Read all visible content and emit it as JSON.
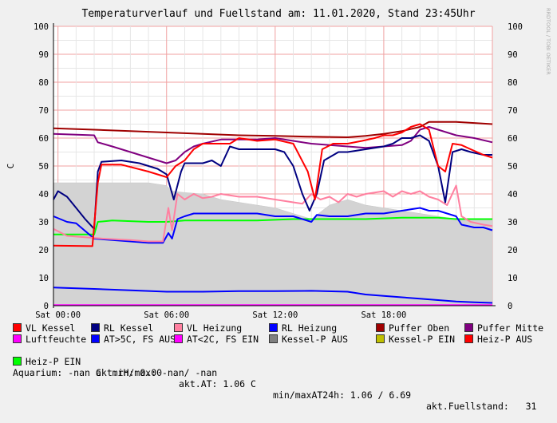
{
  "chart_data": {
    "type": "line",
    "title": "Temperaturverlauf und Fuellstand am: 11.01.2020, Stand 23:45Uhr",
    "ylabel": "C",
    "watermark": "RRDTOOL / TOBI OETIKER",
    "ylim": [
      0,
      100
    ],
    "yticks": [
      0,
      10,
      20,
      30,
      40,
      50,
      60,
      70,
      80,
      90,
      100
    ],
    "xlim_hours": [
      -0.25,
      24
    ],
    "xticks": [
      {
        "h": 0,
        "label": "Sat 00:00"
      },
      {
        "h": 6,
        "label": "Sat 06:00"
      },
      {
        "h": 12,
        "label": "Sat 12:00"
      },
      {
        "h": 18,
        "label": "Sat 18:00"
      }
    ],
    "grid": true,
    "series": [
      {
        "name": "VL Kessel",
        "color": "#ff0000",
        "points": [
          [
            -0.25,
            21.5
          ],
          [
            1.9,
            21.3
          ],
          [
            2.2,
            44
          ],
          [
            2.4,
            50.5
          ],
          [
            3.5,
            50.5
          ],
          [
            5,
            48
          ],
          [
            6,
            46
          ],
          [
            6.5,
            50
          ],
          [
            7,
            52
          ],
          [
            7.5,
            56
          ],
          [
            8,
            58
          ],
          [
            8.8,
            58
          ],
          [
            9.5,
            58
          ],
          [
            10,
            60
          ],
          [
            10.5,
            59.5
          ],
          [
            11,
            59
          ],
          [
            12,
            59.5
          ],
          [
            13,
            58
          ],
          [
            13.8,
            48
          ],
          [
            14.2,
            38
          ],
          [
            14.6,
            56
          ],
          [
            15.2,
            58
          ],
          [
            16,
            58
          ],
          [
            16.8,
            59
          ],
          [
            17.5,
            60
          ],
          [
            18,
            61
          ],
          [
            18.5,
            61
          ],
          [
            19,
            62
          ],
          [
            19.5,
            64
          ],
          [
            20,
            65
          ],
          [
            20.5,
            63
          ],
          [
            21,
            50
          ],
          [
            21.4,
            48
          ],
          [
            21.8,
            58
          ],
          [
            22.3,
            57.5
          ],
          [
            22.8,
            56
          ],
          [
            23.5,
            54
          ],
          [
            24,
            53
          ]
        ]
      },
      {
        "name": "RL Kessel",
        "color": "#000080",
        "points": [
          [
            -0.25,
            38
          ],
          [
            0,
            41
          ],
          [
            0.5,
            39
          ],
          [
            1,
            35
          ],
          [
            1.5,
            31
          ],
          [
            2,
            27.5
          ],
          [
            2.2,
            48
          ],
          [
            2.4,
            51.5
          ],
          [
            3.5,
            52
          ],
          [
            4.5,
            51
          ],
          [
            5.5,
            49
          ],
          [
            6,
            47
          ],
          [
            6.4,
            38
          ],
          [
            6.8,
            48
          ],
          [
            7,
            51
          ],
          [
            8,
            51
          ],
          [
            8.5,
            52
          ],
          [
            9,
            50
          ],
          [
            9.5,
            57
          ],
          [
            10,
            56
          ],
          [
            10.5,
            56
          ],
          [
            11,
            56
          ],
          [
            12,
            56
          ],
          [
            12.5,
            55
          ],
          [
            13,
            50
          ],
          [
            13.5,
            40
          ],
          [
            13.9,
            34
          ],
          [
            14.3,
            40
          ],
          [
            14.7,
            52
          ],
          [
            15.5,
            55
          ],
          [
            16,
            55
          ],
          [
            17,
            56
          ],
          [
            18,
            57
          ],
          [
            18.5,
            58
          ],
          [
            19,
            60
          ],
          [
            19.5,
            60
          ],
          [
            20,
            61
          ],
          [
            20.5,
            59
          ],
          [
            21,
            50
          ],
          [
            21.4,
            37
          ],
          [
            21.8,
            55
          ],
          [
            22.3,
            56
          ],
          [
            22.8,
            55
          ],
          [
            23.5,
            54
          ],
          [
            24,
            54
          ]
        ]
      },
      {
        "name": "VL Heizung",
        "color": "#ff80a0",
        "points": [
          [
            -0.25,
            27.5
          ],
          [
            0.5,
            25
          ],
          [
            1.5,
            24.5
          ],
          [
            2.5,
            24
          ],
          [
            4,
            23.5
          ],
          [
            5,
            23
          ],
          [
            5.8,
            23
          ],
          [
            6.1,
            35
          ],
          [
            6.3,
            27
          ],
          [
            6.6,
            40
          ],
          [
            7,
            38
          ],
          [
            7.5,
            40
          ],
          [
            8,
            38.5
          ],
          [
            8.5,
            39
          ],
          [
            9,
            40
          ],
          [
            9.5,
            39.5
          ],
          [
            10,
            39
          ],
          [
            10.5,
            39
          ],
          [
            11,
            39
          ],
          [
            12,
            38
          ],
          [
            13,
            37
          ],
          [
            13.5,
            36.5
          ],
          [
            14,
            40
          ],
          [
            14.5,
            38
          ],
          [
            15,
            39
          ],
          [
            15.5,
            37
          ],
          [
            16,
            40
          ],
          [
            16.5,
            39
          ],
          [
            17,
            40
          ],
          [
            18,
            41
          ],
          [
            18.5,
            39
          ],
          [
            19,
            41
          ],
          [
            19.5,
            40
          ],
          [
            20,
            41
          ],
          [
            20.5,
            39
          ],
          [
            21,
            38
          ],
          [
            21.5,
            36
          ],
          [
            22,
            43
          ],
          [
            22.3,
            32
          ],
          [
            22.8,
            30
          ],
          [
            23.5,
            29
          ],
          [
            24,
            28.5
          ]
        ]
      },
      {
        "name": "RL Heizung",
        "color": "#0000ff",
        "points": [
          [
            -0.25,
            32
          ],
          [
            0.5,
            30
          ],
          [
            1,
            29.5
          ],
          [
            2,
            24
          ],
          [
            3,
            23.5
          ],
          [
            4,
            23
          ],
          [
            5,
            22.5
          ],
          [
            5.8,
            22.5
          ],
          [
            6.1,
            26
          ],
          [
            6.3,
            24
          ],
          [
            6.6,
            31
          ],
          [
            7,
            32
          ],
          [
            7.5,
            33
          ],
          [
            8,
            33
          ],
          [
            9,
            33
          ],
          [
            10,
            33
          ],
          [
            11,
            33
          ],
          [
            12,
            32
          ],
          [
            13,
            32
          ],
          [
            13.5,
            31
          ],
          [
            14,
            30
          ],
          [
            14.3,
            32.5
          ],
          [
            15,
            32
          ],
          [
            16,
            32
          ],
          [
            17,
            33
          ],
          [
            18,
            33
          ],
          [
            18.5,
            33.5
          ],
          [
            19,
            34
          ],
          [
            19.5,
            34.5
          ],
          [
            20,
            35
          ],
          [
            20.5,
            34
          ],
          [
            21,
            34
          ],
          [
            21.5,
            33
          ],
          [
            22,
            32
          ],
          [
            22.3,
            29
          ],
          [
            23,
            28
          ],
          [
            23.5,
            28
          ],
          [
            24,
            27
          ]
        ]
      },
      {
        "name": "Puffer Oben",
        "color": "#a00000",
        "points": [
          [
            -0.25,
            63.5
          ],
          [
            2,
            63
          ],
          [
            4,
            62.5
          ],
          [
            6,
            62
          ],
          [
            8,
            61.5
          ],
          [
            10,
            61
          ],
          [
            12,
            60.8
          ],
          [
            14,
            60.5
          ],
          [
            16,
            60.3
          ],
          [
            17,
            60.8
          ],
          [
            18,
            61.5
          ],
          [
            19,
            62.5
          ],
          [
            20,
            64
          ],
          [
            20.5,
            65.8
          ],
          [
            22,
            65.8
          ],
          [
            24,
            65
          ]
        ]
      },
      {
        "name": "Puffer Mitte",
        "color": "#800080",
        "points": [
          [
            -0.25,
            61.5
          ],
          [
            2,
            61
          ],
          [
            2.2,
            58.5
          ],
          [
            3,
            57
          ],
          [
            4,
            55
          ],
          [
            5,
            53
          ],
          [
            6,
            51
          ],
          [
            6.5,
            52
          ],
          [
            7,
            55
          ],
          [
            7.5,
            57
          ],
          [
            8,
            58
          ],
          [
            9,
            59.5
          ],
          [
            10,
            59.5
          ],
          [
            11,
            59.5
          ],
          [
            12,
            60
          ],
          [
            13,
            59
          ],
          [
            14,
            58
          ],
          [
            15,
            57.5
          ],
          [
            16,
            57
          ],
          [
            17,
            56.5
          ],
          [
            18,
            57
          ],
          [
            19,
            57.5
          ],
          [
            19.5,
            59
          ],
          [
            20,
            63
          ],
          [
            20.5,
            64
          ],
          [
            21,
            63
          ],
          [
            21.5,
            62
          ],
          [
            22,
            61
          ],
          [
            23,
            60
          ],
          [
            24,
            58.5
          ]
        ]
      },
      {
        "name": "Luftfeuchte",
        "color": "#ff00ff",
        "points": [
          [
            -0.25,
            0.2
          ],
          [
            24,
            0.2
          ]
        ]
      },
      {
        "name": "AT>5C, FS AUS",
        "color": "#0000ff",
        "points": [
          [
            -0.25,
            6.5
          ],
          [
            2,
            6
          ],
          [
            4,
            5.5
          ],
          [
            6,
            5
          ],
          [
            8,
            5
          ],
          [
            10,
            5.2
          ],
          [
            12,
            5.2
          ],
          [
            14,
            5.3
          ],
          [
            16,
            5
          ],
          [
            17,
            4
          ],
          [
            18,
            3.5
          ],
          [
            19,
            3
          ],
          [
            20,
            2.5
          ],
          [
            21,
            2
          ],
          [
            22,
            1.5
          ],
          [
            23,
            1.2
          ],
          [
            24,
            1
          ]
        ]
      },
      {
        "name": "AT<2C, FS EIN",
        "color": "#ff00ff",
        "points": []
      },
      {
        "name": "Kessel-P AUS",
        "color": "#808080",
        "points": []
      },
      {
        "name": "Kessel-P EIN",
        "color": "#c0c000",
        "points": []
      },
      {
        "name": "Heiz-P AUS",
        "color": "#ff0000",
        "points": []
      },
      {
        "name": "Heiz-P EIN",
        "color": "#00ff00",
        "points": [
          [
            -0.25,
            25.5
          ],
          [
            2,
            25.5
          ],
          [
            2.2,
            30
          ],
          [
            3,
            30.5
          ],
          [
            5,
            30
          ],
          [
            6,
            30
          ],
          [
            7,
            30.5
          ],
          [
            9,
            30.5
          ],
          [
            11,
            30.5
          ],
          [
            13,
            31
          ],
          [
            15,
            31
          ],
          [
            17,
            31
          ],
          [
            19,
            31.5
          ],
          [
            21,
            31.5
          ],
          [
            22,
            31
          ],
          [
            23,
            31
          ],
          [
            24,
            31
          ]
        ]
      }
    ],
    "area": {
      "name": "Fuellstand",
      "color": "#d3d3d3",
      "points": [
        [
          -0.25,
          44
        ],
        [
          2,
          44
        ],
        [
          3,
          44
        ],
        [
          5,
          44
        ],
        [
          6,
          43
        ],
        [
          6.3,
          41
        ],
        [
          7,
          40.5
        ],
        [
          8,
          40
        ],
        [
          9,
          38
        ],
        [
          10,
          37
        ],
        [
          11,
          36
        ],
        [
          12,
          35
        ],
        [
          13,
          33
        ],
        [
          14,
          31
        ],
        [
          15,
          36
        ],
        [
          16,
          38
        ],
        [
          17,
          36
        ],
        [
          18,
          35
        ],
        [
          19,
          34
        ],
        [
          20,
          33
        ],
        [
          21,
          32
        ],
        [
          22,
          31
        ],
        [
          23,
          31
        ],
        [
          24,
          31
        ]
      ]
    }
  },
  "legend_rows": [
    [
      {
        "label": "VL Kessel",
        "color": "#ff0000"
      },
      {
        "label": "RL Kessel",
        "color": "#000080"
      },
      {
        "label": "VL Heizung",
        "color": "#ff80a0"
      },
      {
        "label": "RL Heizung",
        "color": "#0000ff"
      },
      {
        "label": "Puffer Oben",
        "color": "#a00000"
      },
      {
        "label": "Puffer Mitte",
        "color": "#800080"
      }
    ],
    [
      {
        "label": "Luftfeuchte",
        "color": "#ff00ff"
      },
      {
        "label": "AT>5C, FS AUS",
        "color": "#0000ff"
      },
      {
        "label": "AT<2C, FS EIN",
        "color": "#ff00ff"
      },
      {
        "label": "Kessel-P AUS",
        "color": "#808080"
      },
      {
        "label": "Kessel-P EIN",
        "color": "#c0c000"
      },
      {
        "label": "Heiz-P AUS",
        "color": "#ff0000"
      }
    ]
  ],
  "legend_row3": {
    "label": "Heiz-P EIN",
    "color": "#00ff00"
  },
  "stats": {
    "rh": "akt.rH: 0.00",
    "at": "akt.AT: 1.06 C",
    "minmax": "min/maxAT24h: 1.06 / 6.69",
    "fuellstand": "akt.Fuellstand:   31",
    "aquarium": "Aquarium: -nan C  min/max: -nan/ -nan"
  }
}
